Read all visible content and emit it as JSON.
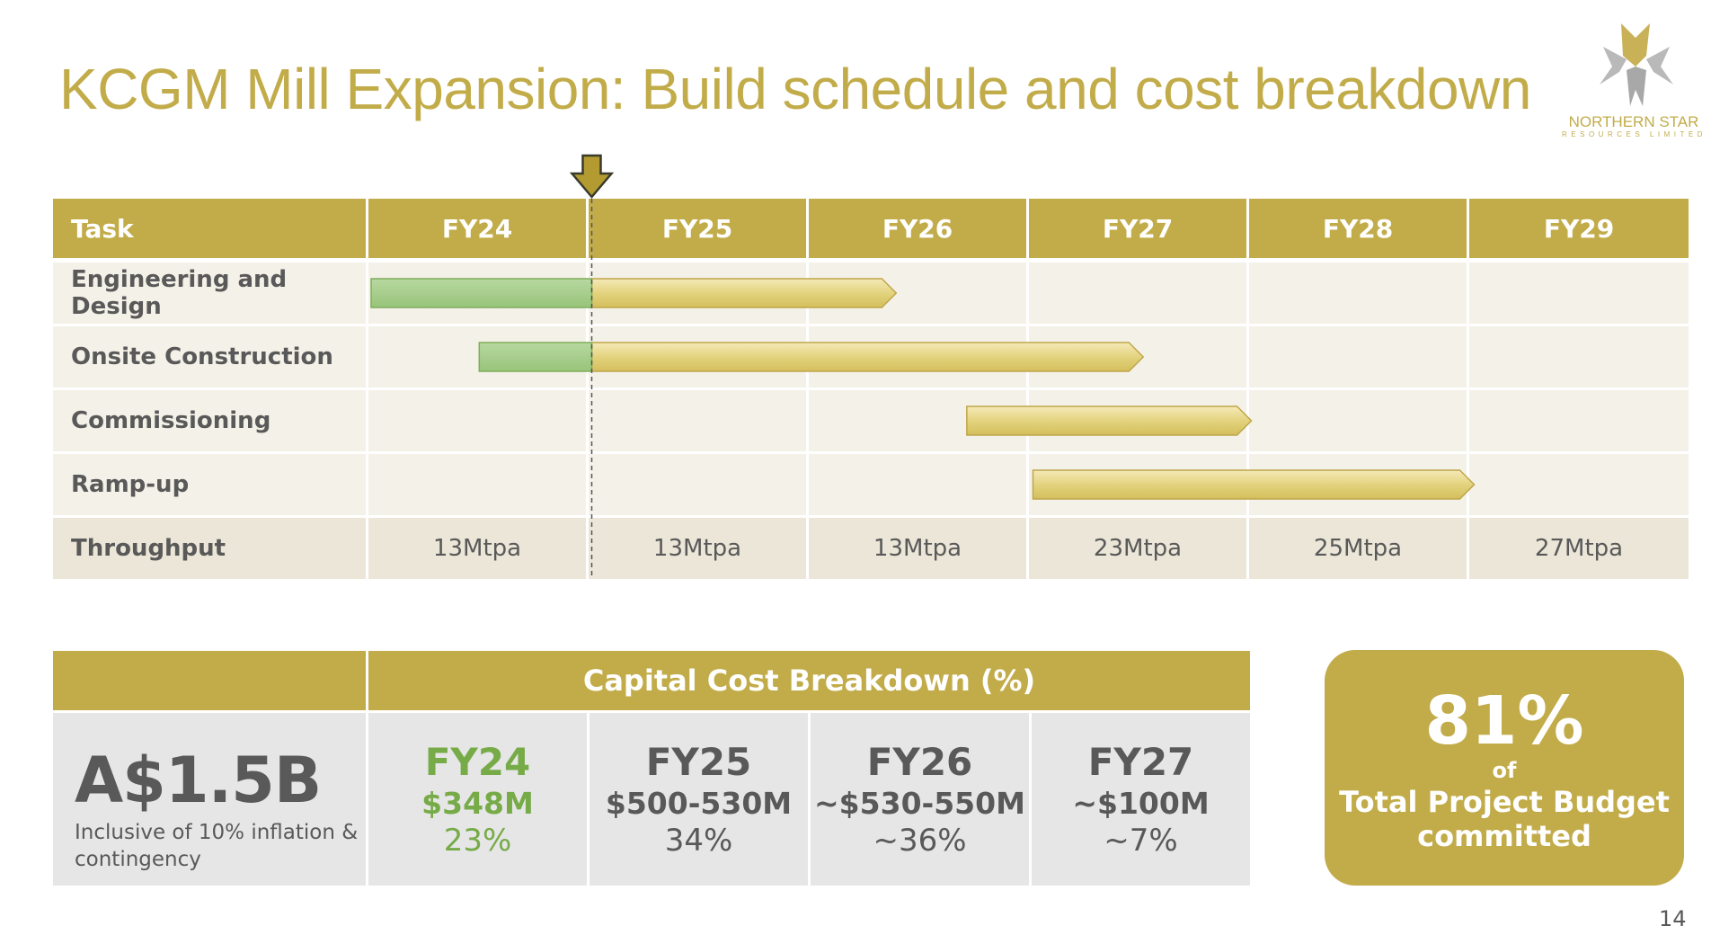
{
  "title": "KCGM Mill Expansion: Build schedule and cost breakdown",
  "logo": {
    "name": "NORTHERN STAR",
    "sub": "RESOURCES LIMITED",
    "icon": "star-logo-icon"
  },
  "colors": {
    "gold": "#c2ac4a",
    "green": "#76ab48",
    "text": "#595959",
    "row_bg": "#f4f1e8",
    "throughput_bg": "#ebe6d7",
    "cell_bg": "#e6e6e6"
  },
  "gantt": {
    "header": {
      "task": "Task",
      "years": [
        "FY24",
        "FY25",
        "FY26",
        "FY27",
        "FY28",
        "FY29"
      ]
    },
    "tasks": [
      {
        "label": "Engineering and Design",
        "start": 0.0,
        "progress_end": 1.0,
        "end": 2.38
      },
      {
        "label": "Onsite Construction",
        "start": 0.49,
        "progress_end": 1.0,
        "end": 3.5
      },
      {
        "label": "Commissioning",
        "start": 2.7,
        "end": 3.99
      },
      {
        "label": "Ramp-up",
        "start": 3.0,
        "end": 5.0
      }
    ],
    "current_marker": 1.0,
    "throughput": {
      "label": "Throughput",
      "values": [
        "13Mtpa",
        "13Mtpa",
        "13Mtpa",
        "23Mtpa",
        "25Mtpa",
        "27Mtpa"
      ]
    }
  },
  "capital": {
    "heading": "Capital Cost Breakdown (%)",
    "total": "A$1.5B",
    "total_note": "Inclusive of 10% inflation & contingency",
    "years": [
      {
        "year": "FY24",
        "amount": "$348M",
        "pct": "23%"
      },
      {
        "year": "FY25",
        "amount": "$500-530M",
        "pct": "34%"
      },
      {
        "year": "FY26",
        "amount": "~$530-550M",
        "pct": "~36%"
      },
      {
        "year": "FY27",
        "amount": "~$100M",
        "pct": "~7%"
      }
    ]
  },
  "budget": {
    "pct": "81%",
    "of": "of",
    "line1": "Total Project Budget",
    "line2": "committed"
  },
  "page_number": "14"
}
